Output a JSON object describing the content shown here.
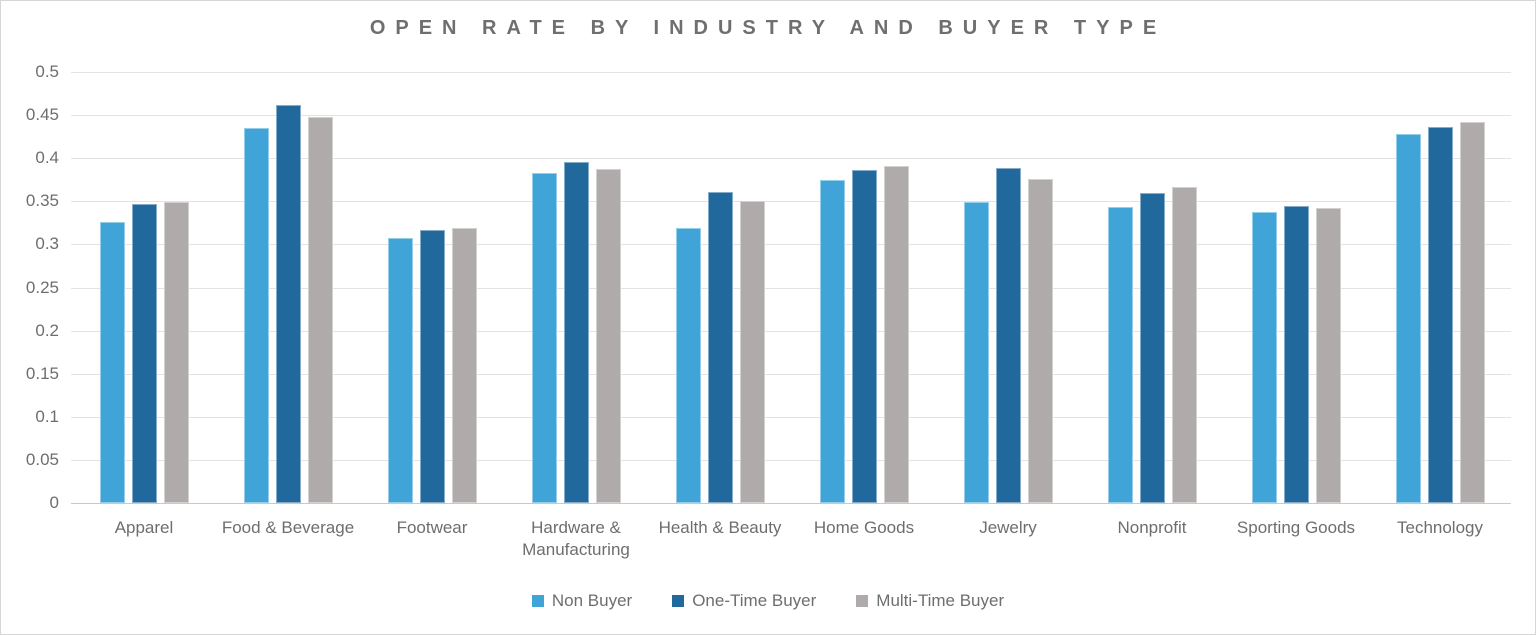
{
  "chart_data": {
    "type": "bar",
    "title": "OPEN RATE BY INDUSTRY AND BUYER TYPE",
    "categories": [
      "Apparel",
      "Food & Beverage",
      "Footwear",
      "Hardware & Manufacturing",
      "Health & Beauty",
      "Home Goods",
      "Jewelry",
      "Nonprofit",
      "Sporting Goods",
      "Technology"
    ],
    "series": [
      {
        "name": "Non Buyer",
        "color": "#41a4d8",
        "values": [
          0.326,
          0.435,
          0.308,
          0.383,
          0.319,
          0.375,
          0.349,
          0.343,
          0.338,
          0.428
        ]
      },
      {
        "name": "One-Time Buyer",
        "color": "#21689c",
        "values": [
          0.347,
          0.462,
          0.317,
          0.396,
          0.361,
          0.386,
          0.389,
          0.36,
          0.344,
          0.436
        ]
      },
      {
        "name": "Multi-Time Buyer",
        "color": "#afabaa",
        "values": [
          0.349,
          0.448,
          0.319,
          0.387,
          0.35,
          0.391,
          0.376,
          0.367,
          0.342,
          0.442
        ]
      }
    ],
    "xlabel": "",
    "ylabel": "",
    "ylim": [
      0,
      0.5
    ],
    "ytick_step": 0.05,
    "ytick_labels": [
      "0",
      "0.05",
      "0.1",
      "0.15",
      "0.2",
      "0.25",
      "0.3",
      "0.35",
      "0.4",
      "0.45",
      "0.5"
    ],
    "grid": true,
    "legend_position": "bottom"
  },
  "colors": {
    "title_text": "#6f6f6f",
    "axis_text": "#6e6e6e",
    "gridline": "#e3e3e3",
    "background": "#ffffff",
    "frame_border": "#d6d6d6"
  }
}
